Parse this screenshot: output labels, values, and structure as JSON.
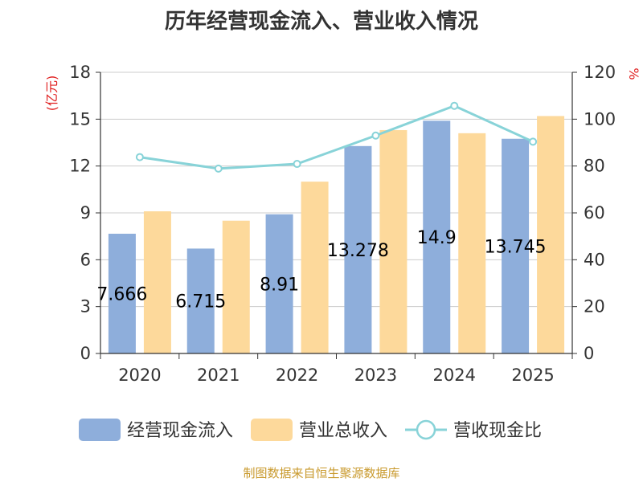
{
  "title": "历年经营现金流入、营业收入情况",
  "source": "制图数据来自恒生聚源数据库",
  "chart_data": {
    "type": "bar",
    "categories": [
      "2020",
      "2021",
      "2022",
      "2023",
      "2024",
      "2025"
    ],
    "series": [
      {
        "name": "经营现金流入",
        "axis": "left",
        "kind": "bar",
        "color": "#8eaedb",
        "values": [
          7.666,
          6.715,
          8.91,
          13.278,
          14.9,
          13.745
        ],
        "labels": [
          "7.666",
          "6.715",
          "8.91",
          "13.278",
          "14.9",
          "13.745"
        ]
      },
      {
        "name": "营业总收入",
        "axis": "left",
        "kind": "bar",
        "color": "#fdd99b",
        "values": [
          9.1,
          8.5,
          11.0,
          14.3,
          14.1,
          15.2
        ]
      },
      {
        "name": "营收现金比",
        "axis": "right",
        "kind": "line",
        "color": "#88d3d8",
        "values": [
          83.8,
          78.9,
          80.9,
          93.0,
          105.7,
          90.4
        ]
      }
    ],
    "left_axis": {
      "label": "(亿元)",
      "min": 0,
      "max": 18,
      "ticks": [
        0,
        3,
        6,
        9,
        12,
        15,
        18
      ]
    },
    "right_axis": {
      "label": "%",
      "min": 0,
      "max": 120,
      "ticks": [
        0,
        20,
        40,
        60,
        80,
        100,
        120
      ]
    },
    "grid": true,
    "legend_position": "bottom"
  }
}
